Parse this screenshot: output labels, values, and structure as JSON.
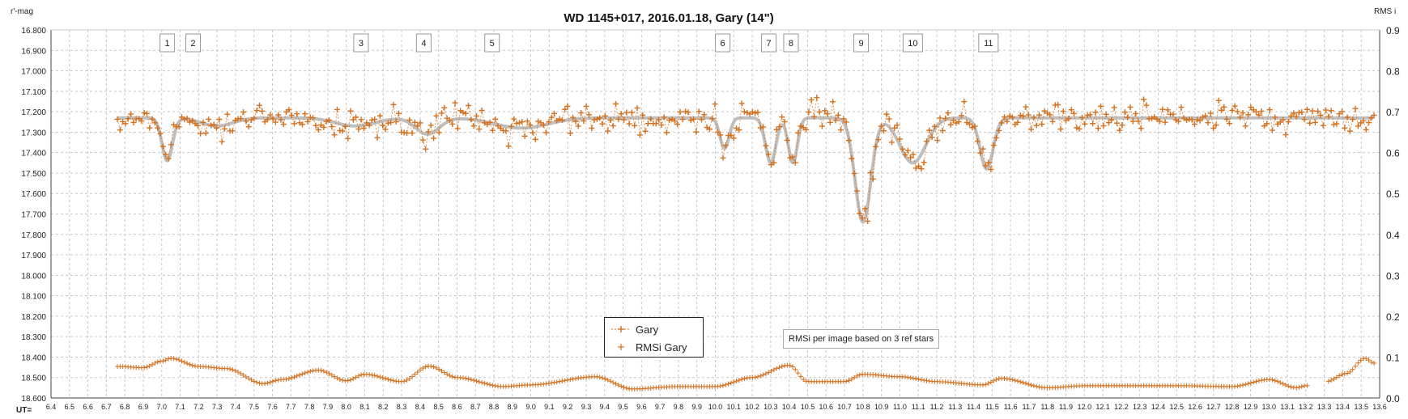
{
  "chart_data": {
    "type": "scatter",
    "title": "WD 1145+017, 2016.01.18,  Gary (14\")",
    "y_left_label": "r'-mag",
    "y_right_label": "RMS i",
    "x_label": "UT=",
    "x_range": [
      6.4,
      13.6
    ],
    "y_left_range": [
      16.8,
      18.6
    ],
    "y_left_inverted": true,
    "y_right_range": [
      0.0,
      0.9
    ],
    "x_ticks": [
      "6.4",
      "6.5",
      "6.6",
      "6.7",
      "6.8",
      "6.9",
      "7.0",
      "7.1",
      "7.2",
      "7.3",
      "7.4",
      "7.5",
      "7.6",
      "7.7",
      "7.8",
      "7.9",
      "8.0",
      "8.1",
      "8.2",
      "8.3",
      "8.4",
      "8.5",
      "8.6",
      "8.7",
      "8.8",
      "8.9",
      "9.0",
      "9.1",
      "9.2",
      "9.3",
      "9.4",
      "9.5",
      "9.6",
      "9.7",
      "9.8",
      "9.9",
      "10.0",
      "10.1",
      "10.2",
      "10.3",
      "10.4",
      "10.5",
      "10.6",
      "10.7",
      "10.8",
      "10.9",
      "11.0",
      "11.1",
      "11.2",
      "11.3",
      "11.4",
      "11.5",
      "11.6",
      "11.7",
      "11.8",
      "11.9",
      "12.0",
      "12.1",
      "12.2",
      "12.3",
      "12.4",
      "12.5",
      "12.6",
      "12.7",
      "12.8",
      "12.9",
      "13.0",
      "13.1",
      "13.2",
      "13.3",
      "13.4",
      "13.5",
      "13.6"
    ],
    "y_left_ticks": [
      "16.800",
      "16.900",
      "17.000",
      "17.100",
      "17.200",
      "17.300",
      "17.400",
      "17.500",
      "17.600",
      "17.700",
      "17.800",
      "17.900",
      "18.000",
      "18.100",
      "18.200",
      "18.300",
      "18.400",
      "18.500",
      "18.600"
    ],
    "y_right_ticks": [
      "0.0",
      "0.1",
      "0.2",
      "0.3",
      "0.4",
      "0.5",
      "0.6",
      "0.7",
      "0.8",
      "0.9"
    ],
    "grid": true,
    "legend_position": "bottom-center",
    "colors": {
      "series": "#d4701e",
      "model": "#bfbfbf",
      "grid": "#c8c8c8",
      "axis": "#444444"
    },
    "dip_labels": [
      {
        "label": "1",
        "x": 7.03
      },
      {
        "label": "2",
        "x": 7.17
      },
      {
        "label": "3",
        "x": 8.08
      },
      {
        "label": "4",
        "x": 8.42
      },
      {
        "label": "5",
        "x": 8.79
      },
      {
        "label": "6",
        "x": 10.04
      },
      {
        "label": "7",
        "x": 10.29
      },
      {
        "label": "8",
        "x": 10.41
      },
      {
        "label": "9",
        "x": 10.79
      },
      {
        "label": "10",
        "x": 11.07
      },
      {
        "label": "11",
        "x": 11.48
      }
    ],
    "model_baseline": 17.23,
    "model_dips": [
      {
        "center": 7.03,
        "depth": 0.21,
        "width": 0.04
      },
      {
        "center": 7.3,
        "depth": 0.04,
        "width": 0.12
      },
      {
        "center": 8.05,
        "depth": 0.04,
        "width": 0.15
      },
      {
        "center": 8.44,
        "depth": 0.08,
        "width": 0.09
      },
      {
        "center": 8.95,
        "depth": 0.05,
        "width": 0.2
      },
      {
        "center": 10.05,
        "depth": 0.15,
        "width": 0.035
      },
      {
        "center": 10.3,
        "depth": 0.22,
        "width": 0.04
      },
      {
        "center": 10.42,
        "depth": 0.22,
        "width": 0.035
      },
      {
        "center": 10.8,
        "depth": 0.51,
        "width": 0.06
      },
      {
        "center": 11.07,
        "depth": 0.22,
        "width": 0.1
      },
      {
        "center": 11.47,
        "depth": 0.25,
        "width": 0.05
      }
    ],
    "series": [
      {
        "name": "Gary",
        "axis": "left",
        "x_start": 6.76,
        "x_end": 13.57,
        "count": 470,
        "scatter_mag": 0.05
      },
      {
        "name": "RMSi Gary",
        "axis": "right",
        "x_start": 6.76,
        "x_end": 13.57,
        "gap": [
          13.21,
          13.31
        ],
        "values_knots": [
          [
            6.76,
            0.077
          ],
          [
            6.9,
            0.074
          ],
          [
            7.0,
            0.09
          ],
          [
            7.05,
            0.097
          ],
          [
            7.2,
            0.077
          ],
          [
            7.35,
            0.072
          ],
          [
            7.55,
            0.035
          ],
          [
            7.65,
            0.045
          ],
          [
            7.85,
            0.068
          ],
          [
            8.0,
            0.042
          ],
          [
            8.1,
            0.058
          ],
          [
            8.3,
            0.04
          ],
          [
            8.45,
            0.078
          ],
          [
            8.6,
            0.05
          ],
          [
            8.85,
            0.028
          ],
          [
            9.0,
            0.032
          ],
          [
            9.35,
            0.052
          ],
          [
            9.55,
            0.022
          ],
          [
            9.8,
            0.028
          ],
          [
            10.0,
            0.028
          ],
          [
            10.2,
            0.05
          ],
          [
            10.4,
            0.08
          ],
          [
            10.5,
            0.04
          ],
          [
            10.7,
            0.04
          ],
          [
            10.8,
            0.058
          ],
          [
            11.0,
            0.052
          ],
          [
            11.2,
            0.04
          ],
          [
            11.45,
            0.032
          ],
          [
            11.55,
            0.048
          ],
          [
            11.8,
            0.025
          ],
          [
            12.0,
            0.03
          ],
          [
            12.25,
            0.03
          ],
          [
            12.5,
            0.03
          ],
          [
            12.8,
            0.028
          ],
          [
            13.0,
            0.045
          ],
          [
            13.15,
            0.025
          ],
          [
            13.2,
            0.03
          ],
          [
            13.31,
            0.04
          ],
          [
            13.42,
            0.06
          ],
          [
            13.52,
            0.097
          ],
          [
            13.57,
            0.085
          ]
        ]
      }
    ]
  },
  "legend": {
    "items": [
      {
        "label": "Gary"
      },
      {
        "label": "RMSi Gary"
      }
    ]
  },
  "note": {
    "text": "RMSi per image based on 3 ref stars"
  }
}
